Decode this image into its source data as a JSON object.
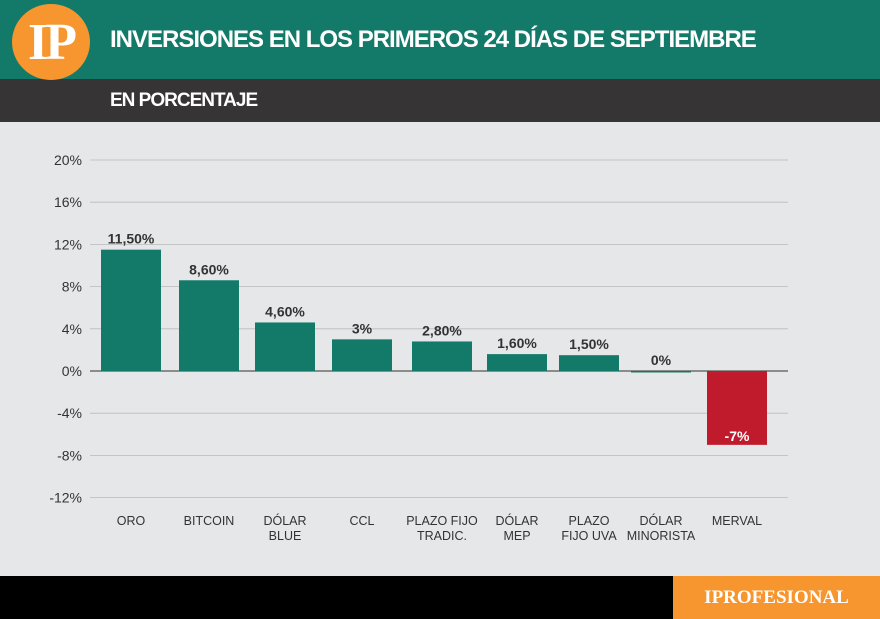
{
  "header": {
    "logo": "IP",
    "title": "INVERSIONES EN LOS PRIMEROS 24 DÍAS DE SEPTIEMBRE",
    "subtitle": "EN PORCENTAJE"
  },
  "footer": {
    "brand": "IPROFESIONAL"
  },
  "chart_data": {
    "type": "bar",
    "categories": [
      [
        "ORO"
      ],
      [
        "BITCOIN"
      ],
      [
        "DÓLAR",
        "BLUE"
      ],
      [
        "CCL"
      ],
      [
        "PLAZO  FIJO",
        "TRADIC."
      ],
      [
        "DÓLAR",
        "MEP"
      ],
      [
        "PLAZO",
        "FIJO  UVA"
      ],
      [
        "DÓLAR",
        "MINORISTA"
      ],
      [
        "MERVAL"
      ]
    ],
    "values": [
      11.5,
      8.6,
      4.6,
      3,
      2.8,
      1.6,
      1.5,
      0,
      -7
    ],
    "data_labels": [
      "11,50%",
      "8,60%",
      "4,60%",
      "3%",
      "2,80%",
      "1,60%",
      "1,50%",
      "0%",
      "-7%"
    ],
    "yticks": [
      20,
      16,
      12,
      8,
      4,
      0,
      -4,
      -8,
      -12
    ],
    "ytick_labels": [
      "20%",
      "16%",
      "12%",
      "8%",
      "4%",
      "0%",
      "-4%",
      "-8%",
      "-12%"
    ],
    "ylim": [
      -12,
      20
    ],
    "grid": true,
    "colors": {
      "positive": "#137a6a",
      "negative": "#c01b2c"
    }
  }
}
